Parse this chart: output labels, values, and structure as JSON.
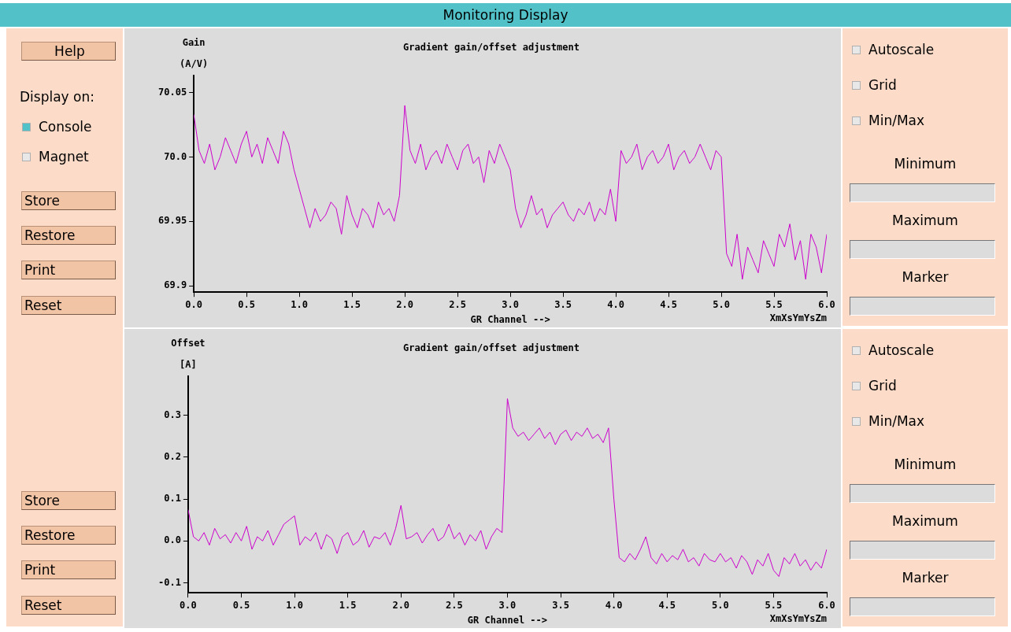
{
  "chart_data": [
    {
      "type": "other",
      "title": "Monitoring Display",
      "annotations": [
        "Help",
        "Display on:",
        "Console",
        "Magnet",
        "Store",
        "Restore",
        "Print",
        "Reset",
        "Store",
        "Restore",
        "Print",
        "Reset"
      ]
    },
    {
      "type": "line",
      "title": "Gradient gain/offset adjustment",
      "ylabel": "Gain\n(A/V)",
      "xlabel": "GR Channel -->",
      "annotations": [
        "XmXsYmYsZm"
      ],
      "grid": false,
      "legend": false,
      "marker": "none",
      "line_style": "solid",
      "xlim": [
        0,
        6
      ],
      "ylim": [
        69.895,
        70.063
      ],
      "xticks": [
        {
          "value": 0,
          "label": "0.0"
        },
        0.5,
        {
          "value": 1,
          "label": "1.0"
        },
        1.5,
        {
          "value": 2,
          "label": "2.0"
        },
        2.5,
        {
          "value": 3,
          "label": "3.0"
        },
        3.5,
        {
          "value": 4,
          "label": "4.0"
        },
        4.5,
        {
          "value": 5,
          "label": "5.0"
        },
        5.5,
        {
          "value": 6,
          "label": "6.0"
        }
      ],
      "yticks": [
        69.9,
        69.95,
        {
          "value": 70,
          "label": "70.0"
        },
        70.05
      ],
      "x": [
        0,
        0.05,
        0.1,
        0.15,
        0.2,
        0.25,
        0.3,
        0.35,
        0.4,
        0.45,
        0.5,
        0.55,
        0.6,
        0.65,
        0.7,
        0.75,
        0.8,
        0.85,
        0.9,
        0.95,
        1,
        1.05,
        1.1,
        1.15,
        1.2,
        1.25,
        1.3,
        1.35,
        1.4,
        1.45,
        1.5,
        1.55,
        1.6,
        1.65,
        1.7,
        1.75,
        1.8,
        1.85,
        1.9,
        1.95,
        2,
        2.05,
        2.1,
        2.15,
        2.2,
        2.25,
        2.3,
        2.35,
        2.4,
        2.45,
        2.5,
        2.55,
        2.6,
        2.65,
        2.7,
        2.75,
        2.8,
        2.85,
        2.9,
        2.95,
        3,
        3.05,
        3.1,
        3.15,
        3.2,
        3.25,
        3.3,
        3.35,
        3.4,
        3.45,
        3.5,
        3.55,
        3.6,
        3.65,
        3.7,
        3.75,
        3.8,
        3.85,
        3.9,
        3.95,
        4,
        4.05,
        4.1,
        4.15,
        4.2,
        4.25,
        4.3,
        4.35,
        4.4,
        4.45,
        4.5,
        4.55,
        4.6,
        4.65,
        4.7,
        4.75,
        4.8,
        4.85,
        4.9,
        4.95,
        5,
        5.05,
        5.1,
        5.15,
        5.2,
        5.25,
        5.3,
        5.35,
        5.4,
        5.45,
        5.5,
        5.55,
        5.6,
        5.65,
        5.7,
        5.75,
        5.8,
        5.85,
        5.9,
        5.95,
        6
      ],
      "series": [
        {
          "color": "#cc00cc",
          "values": [
            70.033,
            70.005,
            69.995,
            70.01,
            69.99,
            70.0,
            70.015,
            70.005,
            69.995,
            70.01,
            70.02,
            70.0,
            70.01,
            69.995,
            70.015,
            70.005,
            69.995,
            70.02,
            70.01,
            69.99,
            69.975,
            69.96,
            69.945,
            69.96,
            69.95,
            69.955,
            69.965,
            69.96,
            69.94,
            69.97,
            69.955,
            69.945,
            69.96,
            69.955,
            69.945,
            69.965,
            69.955,
            69.96,
            69.95,
            69.97,
            70.04,
            70.005,
            69.995,
            70.01,
            69.99,
            70.0,
            70.005,
            69.995,
            70.01,
            70.0,
            69.99,
            70.005,
            70.01,
            69.995,
            70.0,
            69.98,
            70.005,
            69.995,
            70.01,
            70.0,
            69.99,
            69.96,
            69.945,
            69.955,
            69.97,
            69.955,
            69.96,
            69.945,
            69.955,
            69.96,
            69.965,
            69.955,
            69.95,
            69.96,
            69.955,
            69.965,
            69.95,
            69.96,
            69.955,
            69.975,
            69.95,
            70.005,
            69.995,
            70.0,
            70.01,
            69.99,
            70.0,
            70.005,
            69.995,
            70.0,
            70.01,
            69.99,
            70.0,
            70.005,
            69.995,
            70.0,
            70.01,
            70.0,
            69.99,
            70.005,
            70.0,
            69.925,
            69.915,
            69.94,
            69.905,
            69.93,
            69.92,
            69.91,
            69.935,
            69.925,
            69.915,
            69.94,
            69.93,
            69.948,
            69.92,
            69.935,
            69.905,
            69.94,
            69.93,
            69.91,
            69.94
          ]
        }
      ]
    },
    {
      "type": "other",
      "annotations": [
        "Autoscale",
        "Grid",
        "Min/Max",
        "Minimum",
        "Maximum",
        "Marker"
      ]
    },
    {
      "type": "line",
      "title": "Gradient gain/offset adjustment",
      "ylabel": "Offset\n[A]",
      "xlabel": "GR Channel -->",
      "annotations": [
        "XmXsYmYsZm"
      ],
      "grid": false,
      "legend": false,
      "marker": "none",
      "line_style": "solid",
      "xlim": [
        0,
        6
      ],
      "ylim": [
        -0.124,
        0.393
      ],
      "xticks": [
        {
          "value": 0,
          "label": "0.0"
        },
        0.5,
        {
          "value": 1,
          "label": "1.0"
        },
        1.5,
        {
          "value": 2,
          "label": "2.0"
        },
        2.5,
        {
          "value": 3,
          "label": "3.0"
        },
        3.5,
        {
          "value": 4,
          "label": "4.0"
        },
        4.5,
        {
          "value": 5,
          "label": "5.0"
        },
        5.5,
        {
          "value": 6,
          "label": "6.0"
        }
      ],
      "yticks": [
        -0.1,
        {
          "value": 0,
          "label": "0.0"
        },
        0.1,
        0.2,
        0.3
      ],
      "x": [
        0,
        0.05,
        0.1,
        0.15,
        0.2,
        0.25,
        0.3,
        0.35,
        0.4,
        0.45,
        0.5,
        0.55,
        0.6,
        0.65,
        0.7,
        0.75,
        0.8,
        0.85,
        0.9,
        0.95,
        1,
        1.05,
        1.1,
        1.15,
        1.2,
        1.25,
        1.3,
        1.35,
        1.4,
        1.45,
        1.5,
        1.55,
        1.6,
        1.65,
        1.7,
        1.75,
        1.8,
        1.85,
        1.9,
        1.95,
        2,
        2.05,
        2.1,
        2.15,
        2.2,
        2.25,
        2.3,
        2.35,
        2.4,
        2.45,
        2.5,
        2.55,
        2.6,
        2.65,
        2.7,
        2.75,
        2.8,
        2.85,
        2.9,
        2.95,
        3,
        3.05,
        3.1,
        3.15,
        3.2,
        3.25,
        3.3,
        3.35,
        3.4,
        3.45,
        3.5,
        3.55,
        3.6,
        3.65,
        3.7,
        3.75,
        3.8,
        3.85,
        3.9,
        3.95,
        4,
        4.05,
        4.1,
        4.15,
        4.2,
        4.25,
        4.3,
        4.35,
        4.4,
        4.45,
        4.5,
        4.55,
        4.6,
        4.65,
        4.7,
        4.75,
        4.8,
        4.85,
        4.9,
        4.95,
        5,
        5.05,
        5.1,
        5.15,
        5.2,
        5.25,
        5.3,
        5.35,
        5.4,
        5.45,
        5.5,
        5.55,
        5.6,
        5.65,
        5.7,
        5.75,
        5.8,
        5.85,
        5.9,
        5.95,
        6
      ],
      "series": [
        {
          "color": "#cc00cc",
          "values": [
            0.075,
            0.01,
            0.0,
            0.02,
            -0.01,
            0.03,
            0.005,
            0.015,
            -0.005,
            0.02,
            0.0,
            0.035,
            -0.02,
            0.01,
            0.0,
            0.025,
            -0.01,
            0.015,
            0.04,
            0.05,
            0.06,
            -0.01,
            0.01,
            0.0,
            0.02,
            -0.02,
            0.015,
            0.005,
            -0.03,
            0.01,
            0.02,
            -0.01,
            0.0,
            0.025,
            -0.015,
            0.01,
            0.005,
            0.02,
            -0.01,
            0.03,
            0.085,
            0.005,
            0.01,
            0.02,
            -0.005,
            0.015,
            0.03,
            0.0,
            0.01,
            0.04,
            0.005,
            0.02,
            -0.01,
            0.015,
            0.0,
            0.025,
            -0.02,
            0.01,
            0.03,
            0.02,
            0.34,
            0.27,
            0.25,
            0.26,
            0.24,
            0.255,
            0.27,
            0.245,
            0.26,
            0.23,
            0.255,
            0.265,
            0.24,
            0.26,
            0.25,
            0.27,
            0.245,
            0.255,
            0.235,
            0.27,
            0.1,
            -0.04,
            -0.05,
            -0.03,
            -0.045,
            -0.02,
            0.01,
            -0.04,
            -0.055,
            -0.03,
            -0.05,
            -0.035,
            -0.045,
            -0.02,
            -0.05,
            -0.04,
            -0.06,
            -0.03,
            -0.045,
            -0.05,
            -0.03,
            -0.05,
            -0.04,
            -0.065,
            -0.035,
            -0.05,
            -0.08,
            -0.045,
            -0.06,
            -0.03,
            -0.07,
            -0.085,
            -0.04,
            -0.055,
            -0.03,
            -0.06,
            -0.045,
            -0.07,
            -0.05,
            -0.065,
            -0.02
          ]
        }
      ]
    },
    {
      "type": "other",
      "annotations": [
        "Autoscale",
        "Grid",
        "Min/Max",
        "Minimum",
        "Maximum",
        "Marker"
      ]
    }
  ]
}
